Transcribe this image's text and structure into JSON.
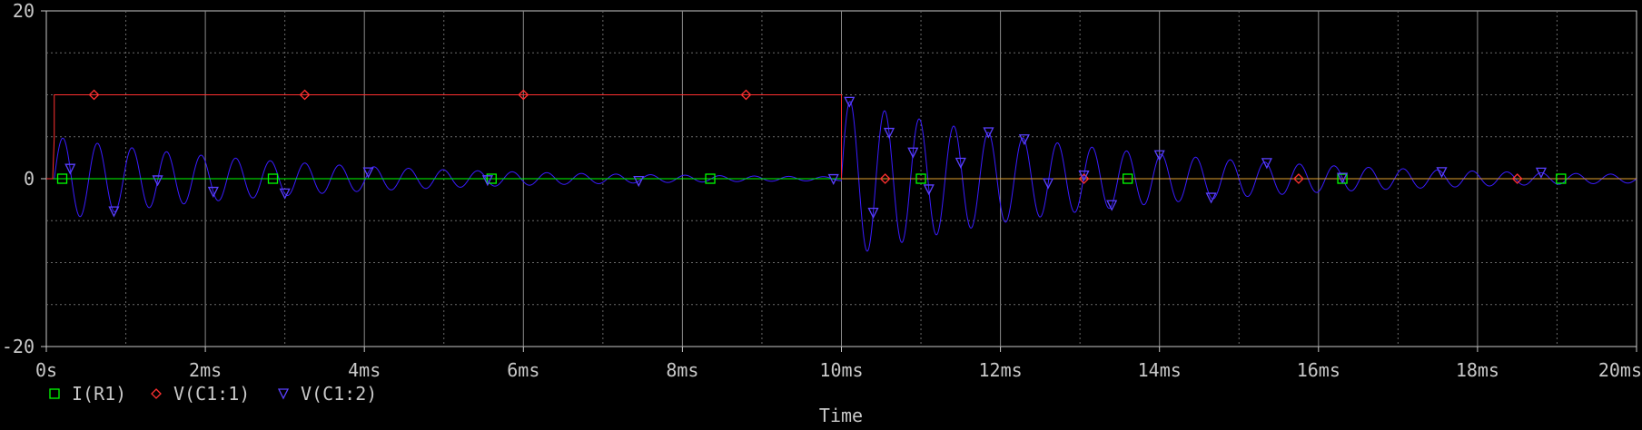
{
  "chart_data": {
    "type": "line",
    "title": "",
    "xlabel": "Time",
    "ylabel": "",
    "xlim": [
      0,
      20
    ],
    "ylim": [
      -20,
      20
    ],
    "x_unit": "ms",
    "x_ticks": [
      0,
      2,
      4,
      6,
      8,
      10,
      12,
      14,
      16,
      18,
      20
    ],
    "x_tick_labels": [
      "0s",
      "2ms",
      "4ms",
      "6ms",
      "8ms",
      "10ms",
      "12ms",
      "14ms",
      "16ms",
      "18ms",
      "20ms"
    ],
    "y_ticks": [
      -20,
      0,
      20
    ],
    "y_tick_labels": [
      "-20",
      "0",
      "20"
    ],
    "grid": true,
    "legend_position": "bottom-left",
    "series": [
      {
        "name": "I(R1)",
        "color": "#00ff00",
        "marker": "square",
        "x": [
          0,
          20
        ],
        "y": [
          0,
          0
        ],
        "marker_x": [
          0.2,
          2.85,
          5.6,
          8.35,
          11.0,
          13.6,
          16.3,
          19.05
        ]
      },
      {
        "name": "V(C1:1)",
        "color": "#ff3030",
        "marker": "diamond",
        "x": [
          0,
          0.08,
          0.1,
          0.1,
          10,
          10,
          20
        ],
        "y": [
          0,
          0,
          5,
          10,
          10,
          0,
          0
        ],
        "marker_x": [
          0.6,
          3.25,
          6.0,
          8.8,
          10.55,
          13.05,
          15.75,
          18.5
        ]
      },
      {
        "name": "V(C1:2)",
        "color": "#3a1cff",
        "marker": "triangle-down",
        "frequency_khz": 2.3,
        "segments": [
          {
            "start_ms": 0.1,
            "end_ms": 10.0,
            "peak_amplitude": 5.0,
            "decay_ms": 3.2
          },
          {
            "start_ms": 10.0,
            "end_ms": 20.0,
            "peak_amplitude": 9.5,
            "decay_ms": 3.4
          }
        ],
        "marker_x": [
          0.3,
          0.85,
          1.4,
          2.1,
          3.0,
          4.05,
          5.55,
          7.45,
          9.9,
          10.1,
          10.4,
          10.6,
          10.9,
          11.1,
          11.5,
          11.85,
          12.3,
          12.6,
          13.05,
          13.4,
          14.0,
          14.65,
          15.35,
          16.3,
          17.55,
          18.8
        ]
      }
    ]
  }
}
